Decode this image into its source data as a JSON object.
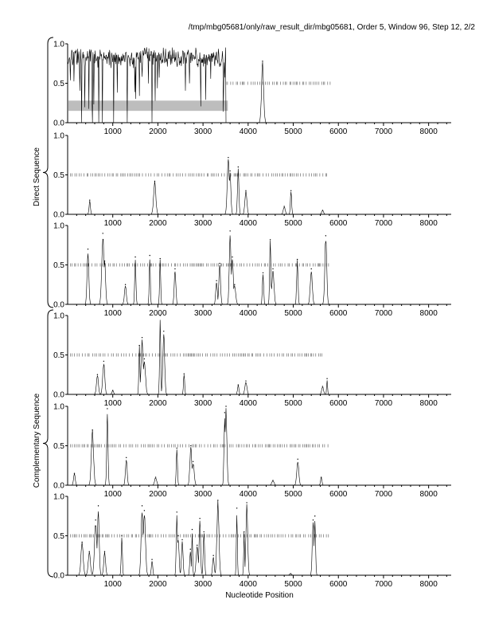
{
  "header": {
    "title": "/tmp/mbg05681/only/raw_result_dir/mbg05681, Order 5, Window 96, Step 12, 2/2"
  },
  "labels": {
    "direct": "Direct Sequence",
    "complementary": "Complementary Sequence",
    "xaxis": "Nucleotide Position"
  },
  "colors": {
    "line": "#000000",
    "dash": "#555555",
    "highlight": "#bdbdbd"
  },
  "chart_data": {
    "type": "line",
    "title": "/tmp/mbg05681/only/raw_result_dir/mbg05681, Order 5, Window 96, Step 12, 2/2",
    "xlabel": "Nucleotide Position",
    "ylabel": "",
    "xlim": [
      0,
      8500
    ],
    "ylim": [
      0,
      1.0
    ],
    "x_ticks": [
      1000,
      2000,
      3000,
      4000,
      5000,
      6000,
      7000,
      8000
    ],
    "x_tick_labels": [
      "1000",
      "2000",
      "3000",
      "4000",
      "5000",
      "6000",
      "7000",
      "8000"
    ],
    "y_ticks": [
      0.0,
      0.5,
      1.0
    ],
    "y_tick_labels": [
      "0.0",
      "0.5",
      "1.0"
    ],
    "groups": [
      {
        "label": "Direct Sequence",
        "panels": [
          0,
          1,
          2
        ]
      },
      {
        "label": "Complementary Sequence",
        "panels": [
          3,
          4,
          5
        ]
      }
    ],
    "panels": [
      {
        "name": "direct-frame-1",
        "highlight": {
          "x": [
            0,
            3550
          ],
          "y": [
            0.15,
            0.28
          ]
        },
        "coding_marks": {
          "y": 0.5,
          "x": [
            3450,
            5850
          ]
        },
        "plateau": {
          "x": [
            0,
            3500
          ]
        },
        "peaks": [
          [
            4320,
            0.78
          ]
        ]
      },
      {
        "name": "direct-frame-2",
        "coding_marks": {
          "y": 0.5,
          "x": [
            0,
            5800
          ]
        },
        "peaks": [
          [
            490,
            0.18
          ],
          [
            1930,
            0.42
          ],
          [
            3560,
            0.72
          ],
          [
            3600,
            0.55
          ],
          [
            3780,
            0.6
          ],
          [
            3950,
            0.3
          ],
          [
            4800,
            0.1
          ],
          [
            4950,
            0.3
          ],
          [
            5650,
            0.05
          ]
        ]
      },
      {
        "name": "direct-frame-3",
        "coding_marks": {
          "y": 0.5,
          "x": [
            0,
            5800
          ]
        },
        "peaks": [
          [
            450,
            0.7
          ],
          [
            780,
            0.9
          ],
          [
            820,
            0.55
          ],
          [
            1280,
            0.25
          ],
          [
            1500,
            0.6
          ],
          [
            1820,
            0.62
          ],
          [
            2050,
            0.58
          ],
          [
            2380,
            0.45
          ],
          [
            3300,
            0.3
          ],
          [
            3370,
            0.52
          ],
          [
            3600,
            0.93
          ],
          [
            3650,
            0.6
          ],
          [
            3700,
            0.25
          ],
          [
            4330,
            0.4
          ],
          [
            4490,
            0.82
          ],
          [
            4550,
            0.45
          ],
          [
            5090,
            0.57
          ],
          [
            5400,
            0.45
          ],
          [
            5720,
            0.87
          ]
        ]
      },
      {
        "name": "complementary-frame-1",
        "coding_marks": {
          "y": 0.5,
          "x": [
            0,
            5650
          ]
        },
        "peaks": [
          [
            660,
            0.25
          ],
          [
            800,
            0.42
          ],
          [
            1000,
            0.05
          ],
          [
            1590,
            0.62
          ],
          [
            1650,
            0.72
          ],
          [
            1700,
            0.45
          ],
          [
            2050,
            1.0
          ],
          [
            2130,
            0.8
          ],
          [
            2580,
            0.26
          ],
          [
            3780,
            0.12
          ],
          [
            3950,
            0.17
          ],
          [
            5650,
            0.1
          ],
          [
            5750,
            0.2
          ]
        ]
      },
      {
        "name": "complementary-frame-2",
        "coding_marks": {
          "y": 0.5,
          "x": [
            0,
            5800
          ]
        },
        "peaks": [
          [
            150,
            0.15
          ],
          [
            550,
            0.7
          ],
          [
            880,
            0.97
          ],
          [
            1300,
            0.35
          ],
          [
            1950,
            0.1
          ],
          [
            2420,
            0.47
          ],
          [
            2730,
            0.5
          ],
          [
            2780,
            0.3
          ],
          [
            3480,
            0.92
          ],
          [
            3510,
            1.0
          ],
          [
            4550,
            0.06
          ],
          [
            5100,
            0.33
          ],
          [
            5620,
            0.1
          ]
        ]
      },
      {
        "name": "complementary-frame-3",
        "coding_marks": {
          "y": 0.5,
          "x": [
            0,
            5800
          ]
        },
        "peaks": [
          [
            320,
            0.42
          ],
          [
            480,
            0.3
          ],
          [
            620,
            0.7
          ],
          [
            680,
            0.88
          ],
          [
            820,
            0.3
          ],
          [
            1200,
            0.5
          ],
          [
            1650,
            0.88
          ],
          [
            1700,
            0.82
          ],
          [
            1870,
            0.2
          ],
          [
            2420,
            0.8
          ],
          [
            2450,
            0.5
          ],
          [
            2540,
            0.45
          ],
          [
            2720,
            0.33
          ],
          [
            2760,
            0.58
          ],
          [
            2870,
            0.38
          ],
          [
            2930,
            0.72
          ],
          [
            3020,
            0.55
          ],
          [
            3230,
            0.25
          ],
          [
            3330,
            0.95
          ],
          [
            3750,
            0.85
          ],
          [
            3910,
            0.55
          ],
          [
            3970,
            0.92
          ],
          [
            4940,
            0.02
          ],
          [
            5440,
            0.7
          ],
          [
            5480,
            0.75
          ]
        ]
      }
    ]
  }
}
